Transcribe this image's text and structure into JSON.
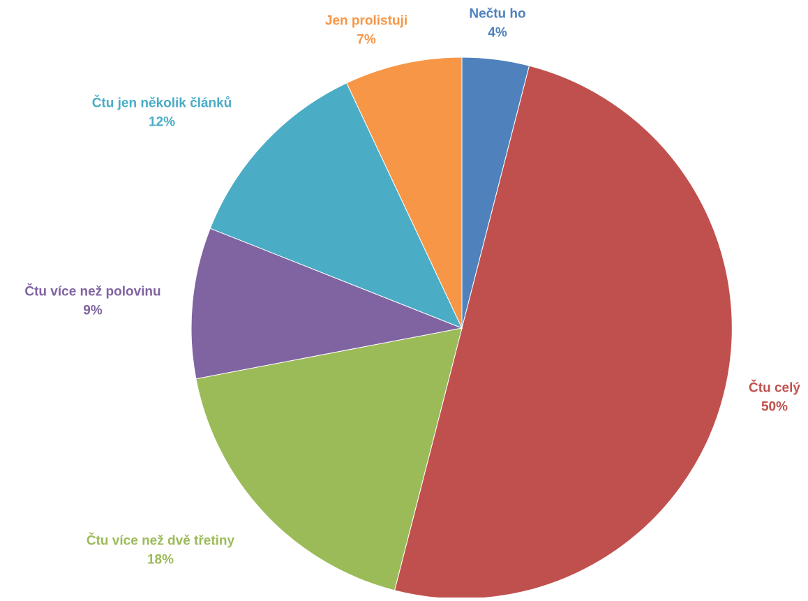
{
  "chart_data": {
    "type": "pie",
    "start_angle_deg": 0,
    "direction": "clockwise",
    "slices": [
      {
        "label": "Nečtu ho",
        "value": 4,
        "value_label": "4%",
        "color": "#4F81BD"
      },
      {
        "label": "Čtu celý",
        "value": 50,
        "value_label": "50%",
        "color": "#C0504D"
      },
      {
        "label": "Čtu více než dvě třetiny",
        "value": 18,
        "value_label": "18%",
        "color": "#9BBB59"
      },
      {
        "label": "Čtu více než polovinu",
        "value": 9,
        "value_label": "9%",
        "color": "#8064A2"
      },
      {
        "label": "Čtu jen několik článků",
        "value": 12,
        "value_label": "12%",
        "color": "#4BACC6"
      },
      {
        "label": "Jen prolistuji",
        "value": 7,
        "value_label": "7%",
        "color": "#F79646"
      }
    ],
    "legend": "none"
  }
}
